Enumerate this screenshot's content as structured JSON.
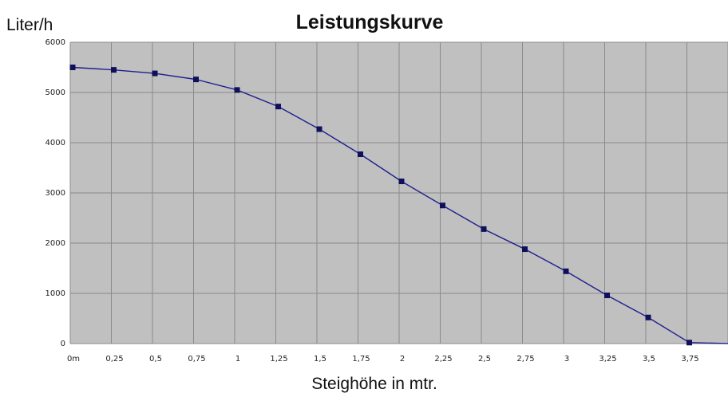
{
  "chart_data": {
    "type": "line",
    "title": "Leistungskurve",
    "ylabel": "Liter/h",
    "xlabel": "Steighöhe in mtr.",
    "categories": [
      "0m",
      "0,25",
      "0,5",
      "0,75",
      "1",
      "1,25",
      "1,5",
      "1,75",
      "2",
      "2,25",
      "2,5",
      "2,75",
      "3",
      "3,25",
      "3,5",
      "3,75",
      ""
    ],
    "series": [
      {
        "values": [
          5500,
          5450,
          5380,
          5260,
          5050,
          4720,
          4270,
          3770,
          3230,
          2750,
          2280,
          1880,
          1440,
          960,
          520,
          20,
          0
        ]
      }
    ],
    "ylim": [
      0,
      6000
    ],
    "yticks": [
      0,
      1000,
      2000,
      3000,
      4000,
      5000,
      6000
    ],
    "grid": true,
    "legend": "none",
    "colors": {
      "plot_background": "#c0c0c0",
      "grid": "#8a8a8a",
      "line": "#1f1f8f",
      "marker": "#10105a"
    }
  }
}
